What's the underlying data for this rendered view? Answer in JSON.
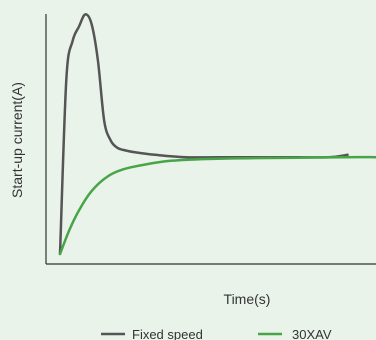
{
  "chart_data": {
    "type": "line",
    "title": "",
    "xlabel": "Time(s)",
    "ylabel": "Start-up current(A)",
    "xlim": [
      0,
      100
    ],
    "ylim": [
      0,
      100
    ],
    "grid": false,
    "legend_position": "bottom",
    "ticks_shown": false,
    "series": [
      {
        "name": "Fixed speed",
        "color": "#555555",
        "x": [
          0,
          2,
          4,
          6,
          8,
          10,
          12,
          14,
          16,
          18,
          20,
          24,
          30,
          40,
          55,
          70,
          85,
          91
        ],
        "y": [
          0,
          72,
          88,
          94,
          99,
          95,
          80,
          55,
          47,
          44,
          43,
          42,
          41,
          40,
          40,
          40,
          40,
          41
        ]
      },
      {
        "name": "30XAV",
        "color": "#47a547",
        "x": [
          0,
          3,
          6,
          10,
          15,
          20,
          27,
          35,
          45,
          60,
          75,
          90,
          100
        ],
        "y": [
          0,
          10,
          18,
          26,
          32,
          35,
          37,
          38.5,
          39.2,
          39.6,
          39.8,
          40,
          40
        ]
      }
    ]
  }
}
